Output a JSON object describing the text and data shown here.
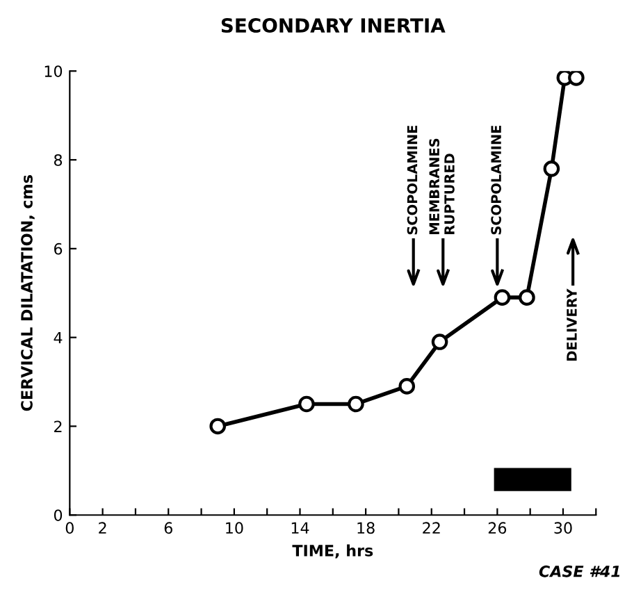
{
  "chart_data": {
    "type": "line",
    "title": "SECONDARY INERTIA",
    "xlabel": "TIME, hrs",
    "ylabel": "CERVICAL DILATATION, cms",
    "series": [
      {
        "x": [
          9.0,
          14.4,
          17.4,
          20.5,
          22.5,
          26.3,
          27.8,
          29.3,
          30.1,
          30.8
        ],
        "values": [
          2.0,
          2.5,
          2.5,
          2.9,
          3.9,
          4.9,
          4.9,
          7.8,
          9.85,
          9.85
        ],
        "color": "#000000",
        "marker": "circle"
      },
      {
        "x": [
          25.8,
          30.5
        ],
        "values": [
          0.8,
          0.8
        ],
        "color": "#000000",
        "marker": "none"
      }
    ],
    "line_style": "solid",
    "xlim": [
      0,
      32
    ],
    "ylim": [
      0,
      10
    ],
    "xticks": [
      0,
      2,
      {
        "value": 4,
        "label": null
      },
      6,
      {
        "value": 8,
        "label": null
      },
      10,
      {
        "value": 12,
        "label": null
      },
      14,
      {
        "value": 16,
        "label": null
      },
      18,
      {
        "value": 20,
        "label": null
      },
      22,
      {
        "value": 24,
        "label": null
      },
      26,
      {
        "value": 28,
        "label": null
      },
      30,
      {
        "value": 32,
        "label": null
      }
    ],
    "yticks": [
      0,
      2,
      4,
      6,
      8,
      10
    ],
    "ref_lines": [
      {
        "axis": "x",
        "value": 20.9,
        "label": "SCOPOLAMINE"
      },
      {
        "axis": "x",
        "value": 22.7,
        "label": "MEMBRANES\nRUPTURED"
      },
      {
        "axis": "x",
        "value": 26.0,
        "label": "SCOPOLAMINE"
      },
      {
        "axis": "x",
        "value": 30.6,
        "label": "DELIVERY"
      }
    ],
    "annotations": [
      "CASE #41"
    ],
    "grid": false
  }
}
